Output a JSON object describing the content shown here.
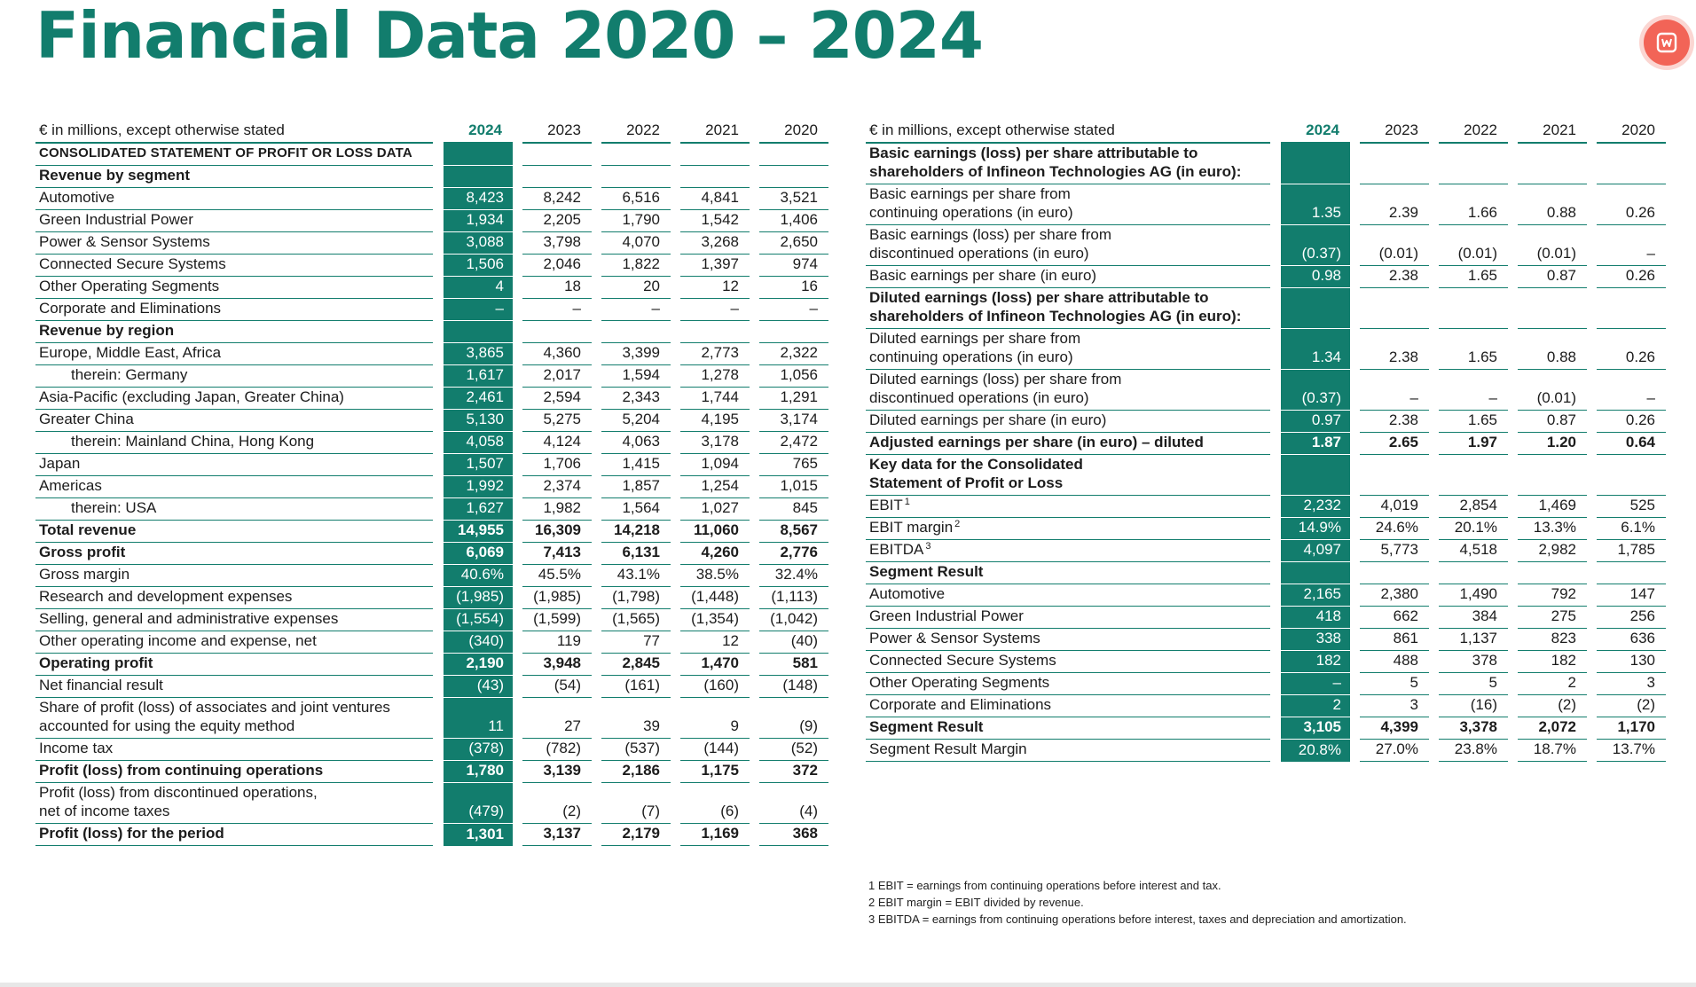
{
  "title": "Financial Data 2020 – 2024",
  "colors": {
    "accent": "#127d6d",
    "icon": "#f26457"
  },
  "icon": "app-icon",
  "left_table": {
    "header": {
      "label": "€ in millions, except otherwise stated",
      "years": [
        "2024",
        "2023",
        "2022",
        "2021",
        "2020"
      ]
    },
    "rows": [
      {
        "label": "CONSOLIDATED STATEMENT OF PROFIT OR LOSS DATA",
        "values": [
          "",
          "",
          "",
          "",
          ""
        ],
        "bold": true,
        "caps": true
      },
      {
        "label": "Revenue by segment",
        "values": [
          "",
          "",
          "",
          "",
          ""
        ],
        "bold": true
      },
      {
        "label": "Automotive",
        "values": [
          "8,423",
          "8,242",
          "6,516",
          "4,841",
          "3,521"
        ]
      },
      {
        "label": "Green Industrial Power",
        "values": [
          "1,934",
          "2,205",
          "1,790",
          "1,542",
          "1,406"
        ]
      },
      {
        "label": "Power & Sensor Systems",
        "values": [
          "3,088",
          "3,798",
          "4,070",
          "3,268",
          "2,650"
        ]
      },
      {
        "label": "Connected Secure Systems",
        "values": [
          "1,506",
          "2,046",
          "1,822",
          "1,397",
          "974"
        ]
      },
      {
        "label": "Other Operating Segments",
        "values": [
          "4",
          "18",
          "20",
          "12",
          "16"
        ]
      },
      {
        "label": "Corporate and Eliminations",
        "values": [
          "–",
          "–",
          "–",
          "–",
          "–"
        ]
      },
      {
        "label": "Revenue by region",
        "values": [
          "",
          "",
          "",
          "",
          ""
        ],
        "bold": true
      },
      {
        "label": "Europe, Middle East, Africa",
        "values": [
          "3,865",
          "4,360",
          "3,399",
          "2,773",
          "2,322"
        ]
      },
      {
        "label": "therein: Germany",
        "values": [
          "1,617",
          "2,017",
          "1,594",
          "1,278",
          "1,056"
        ],
        "indent": true
      },
      {
        "label": "Asia-Pacific (excluding Japan, Greater China)",
        "values": [
          "2,461",
          "2,594",
          "2,343",
          "1,744",
          "1,291"
        ]
      },
      {
        "label": "Greater China",
        "values": [
          "5,130",
          "5,275",
          "5,204",
          "4,195",
          "3,174"
        ]
      },
      {
        "label": "therein: Mainland China, Hong Kong",
        "values": [
          "4,058",
          "4,124",
          "4,063",
          "3,178",
          "2,472"
        ],
        "indent": true
      },
      {
        "label": "Japan",
        "values": [
          "1,507",
          "1,706",
          "1,415",
          "1,094",
          "765"
        ]
      },
      {
        "label": "Americas",
        "values": [
          "1,992",
          "2,374",
          "1,857",
          "1,254",
          "1,015"
        ]
      },
      {
        "label": "therein: USA",
        "values": [
          "1,627",
          "1,982",
          "1,564",
          "1,027",
          "845"
        ],
        "indent": true
      },
      {
        "label": "Total revenue",
        "values": [
          "14,955",
          "16,309",
          "14,218",
          "11,060",
          "8,567"
        ],
        "bold": true
      },
      {
        "label": "Gross profit",
        "values": [
          "6,069",
          "7,413",
          "6,131",
          "4,260",
          "2,776"
        ],
        "bold": true
      },
      {
        "label": "Gross margin",
        "values": [
          "40.6%",
          "45.5%",
          "43.1%",
          "38.5%",
          "32.4%"
        ]
      },
      {
        "label": "Research and development expenses",
        "values": [
          "(1,985)",
          "(1,985)",
          "(1,798)",
          "(1,448)",
          "(1,113)"
        ]
      },
      {
        "label": "Selling, general and administrative expenses",
        "values": [
          "(1,554)",
          "(1,599)",
          "(1,565)",
          "(1,354)",
          "(1,042)"
        ]
      },
      {
        "label": "Other operating income and expense, net",
        "values": [
          "(340)",
          "119",
          "77",
          "12",
          "(40)"
        ]
      },
      {
        "label": "Operating profit",
        "values": [
          "2,190",
          "3,948",
          "2,845",
          "1,470",
          "581"
        ],
        "bold": true
      },
      {
        "label": "Net financial result",
        "values": [
          "(43)",
          "(54)",
          "(161)",
          "(160)",
          "(148)"
        ]
      },
      {
        "label": "Share of profit (loss) of associates and joint ventures",
        "label2": "accounted for using the equity method",
        "values": [
          "11",
          "27",
          "39",
          "9",
          "(9)"
        ]
      },
      {
        "label": "Income tax",
        "values": [
          "(378)",
          "(782)",
          "(537)",
          "(144)",
          "(52)"
        ]
      },
      {
        "label": "Profit (loss) from continuing operations",
        "values": [
          "1,780",
          "3,139",
          "2,186",
          "1,175",
          "372"
        ],
        "bold": true
      },
      {
        "label": "Profit (loss) from discontinued operations,",
        "label2": "net of income taxes",
        "values": [
          "(479)",
          "(2)",
          "(7)",
          "(6)",
          "(4)"
        ]
      },
      {
        "label": "Profit (loss) for the period",
        "values": [
          "1,301",
          "3,137",
          "2,179",
          "1,169",
          "368"
        ],
        "bold": true
      }
    ]
  },
  "right_table": {
    "header": {
      "label": "€ in millions, except otherwise stated",
      "years": [
        "2024",
        "2023",
        "2022",
        "2021",
        "2020"
      ]
    },
    "rows": [
      {
        "label": "Basic earnings (loss) per share attributable to",
        "label2": "shareholders of Infineon Technologies AG (in euro):",
        "values": [
          "",
          "",
          "",
          "",
          ""
        ],
        "bold": true
      },
      {
        "label": "Basic earnings per share from",
        "label2": "continuing operations (in euro)",
        "values": [
          "1.35",
          "2.39",
          "1.66",
          "0.88",
          "0.26"
        ]
      },
      {
        "label": "Basic earnings (loss) per share from",
        "label2": "discontinued operations (in euro)",
        "values": [
          "(0.37)",
          "(0.01)",
          "(0.01)",
          "(0.01)",
          "–"
        ]
      },
      {
        "label": "Basic earnings per share (in euro)",
        "values": [
          "0.98",
          "2.38",
          "1.65",
          "0.87",
          "0.26"
        ]
      },
      {
        "label": "Diluted earnings (loss) per share attributable to",
        "label2": "shareholders of Infineon Technologies AG (in euro):",
        "values": [
          "",
          "",
          "",
          "",
          ""
        ],
        "bold": true
      },
      {
        "label": "Diluted earnings per share from",
        "label2": "continuing operations (in euro)",
        "values": [
          "1.34",
          "2.38",
          "1.65",
          "0.88",
          "0.26"
        ]
      },
      {
        "label": "Diluted earnings (loss) per share from",
        "label2": "discontinued operations (in euro)",
        "values": [
          "(0.37)",
          "–",
          "–",
          "(0.01)",
          "–"
        ]
      },
      {
        "label": "Diluted earnings per share (in euro)",
        "values": [
          "0.97",
          "2.38",
          "1.65",
          "0.87",
          "0.26"
        ]
      },
      {
        "label": "Adjusted earnings per share (in euro) – diluted",
        "values": [
          "1.87",
          "2.65",
          "1.97",
          "1.20",
          "0.64"
        ],
        "bold": true
      },
      {
        "label": "Key data for the Consolidated",
        "label2": "Statement of Profit or Loss",
        "values": [
          "",
          "",
          "",
          "",
          ""
        ],
        "bold": true
      },
      {
        "label": "EBIT",
        "sup": "1",
        "values": [
          "2,232",
          "4,019",
          "2,854",
          "1,469",
          "525"
        ]
      },
      {
        "label": "EBIT margin",
        "sup": "2",
        "values": [
          "14.9%",
          "24.6%",
          "20.1%",
          "13.3%",
          "6.1%"
        ]
      },
      {
        "label": "EBITDA",
        "sup": "3",
        "values": [
          "4,097",
          "5,773",
          "4,518",
          "2,982",
          "1,785"
        ]
      },
      {
        "label": "Segment Result",
        "values": [
          "",
          "",
          "",
          "",
          ""
        ],
        "bold": true
      },
      {
        "label": "Automotive",
        "values": [
          "2,165",
          "2,380",
          "1,490",
          "792",
          "147"
        ]
      },
      {
        "label": "Green Industrial Power",
        "values": [
          "418",
          "662",
          "384",
          "275",
          "256"
        ]
      },
      {
        "label": "Power & Sensor Systems",
        "values": [
          "338",
          "861",
          "1,137",
          "823",
          "636"
        ]
      },
      {
        "label": "Connected Secure Systems",
        "values": [
          "182",
          "488",
          "378",
          "182",
          "130"
        ]
      },
      {
        "label": "Other Operating Segments",
        "values": [
          "–",
          "5",
          "5",
          "2",
          "3"
        ]
      },
      {
        "label": "Corporate and Eliminations",
        "values": [
          "2",
          "3",
          "(16)",
          "(2)",
          "(2)"
        ]
      },
      {
        "label": "Segment Result",
        "values": [
          "3,105",
          "4,399",
          "3,378",
          "2,072",
          "1,170"
        ],
        "bold": true
      },
      {
        "label": "Segment Result Margin",
        "values": [
          "20.8%",
          "27.0%",
          "23.8%",
          "18.7%",
          "13.7%"
        ]
      }
    ]
  },
  "footnotes": [
    "1 EBIT = earnings from continuing operations before interest and tax.",
    "2 EBIT margin = EBIT divided by revenue.",
    "3 EBITDA = earnings from continuing operations before interest, taxes and depreciation and amortization."
  ]
}
